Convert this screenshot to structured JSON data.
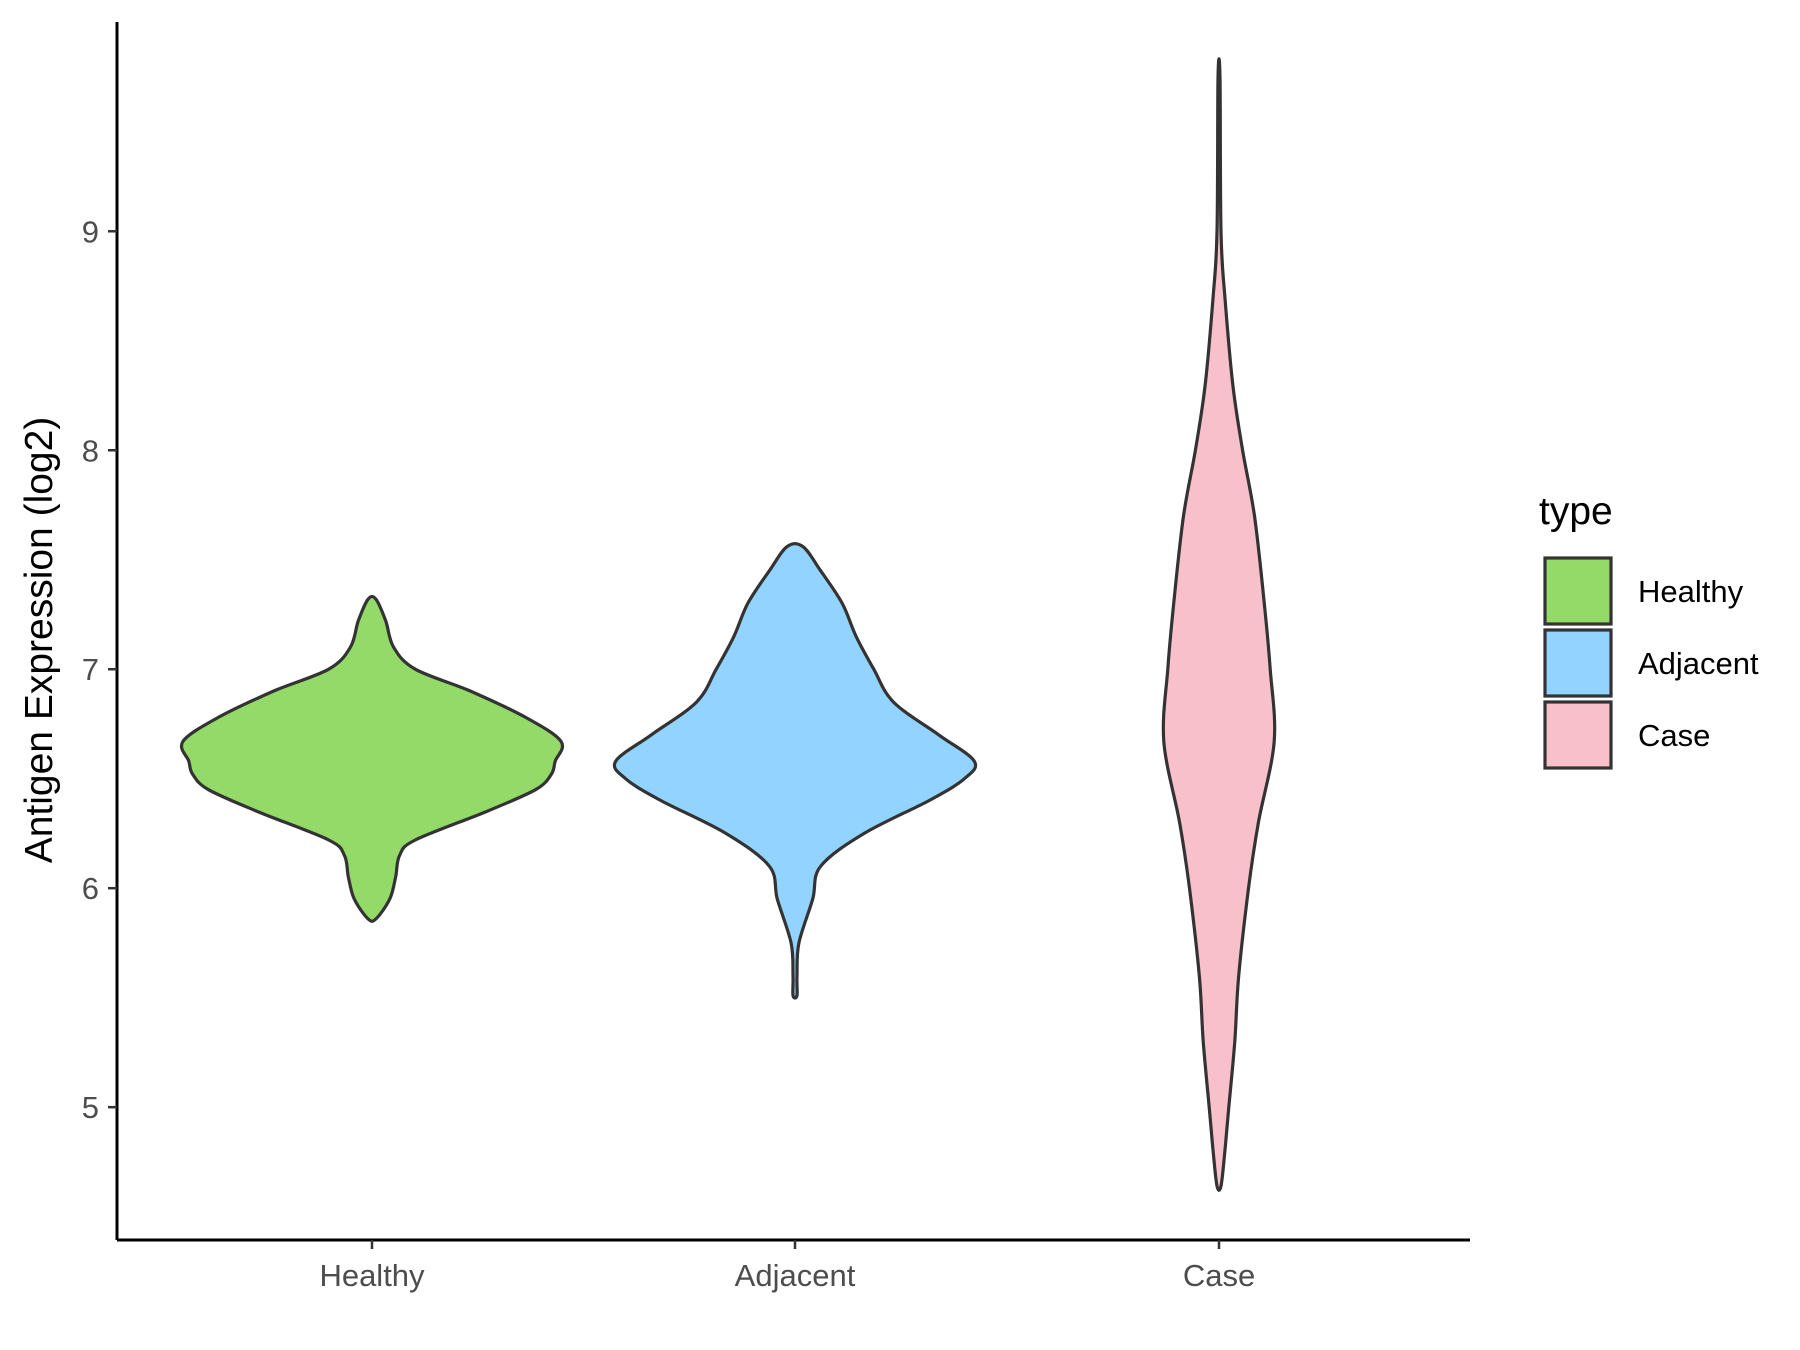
{
  "chart_data": {
    "type": "violin",
    "ylabel": "Antigen Expression (log2)",
    "xlabel": "",
    "categories": [
      "Healthy",
      "Adjacent",
      "Case"
    ],
    "ylim": [
      4.4,
      9.95
    ],
    "yticks": [
      5,
      6,
      7,
      8,
      9
    ],
    "grid": false,
    "legend": {
      "title": "type",
      "position": "right",
      "entries": [
        "Healthy",
        "Adjacent",
        "Case"
      ]
    },
    "colors": {
      "Healthy": "#93DA69",
      "Adjacent": "#93D3FF",
      "Case": "#F7C0CB",
      "outline": "#333333"
    },
    "series": [
      {
        "name": "Healthy",
        "range": [
          5.86,
          7.32
        ],
        "density_profile": [
          [
            5.86,
            0.02
          ],
          [
            5.95,
            0.09
          ],
          [
            6.05,
            0.12
          ],
          [
            6.15,
            0.14
          ],
          [
            6.22,
            0.22
          ],
          [
            6.35,
            0.58
          ],
          [
            6.45,
            0.83
          ],
          [
            6.52,
            0.91
          ],
          [
            6.58,
            0.93
          ],
          [
            6.67,
            0.96
          ],
          [
            6.78,
            0.78
          ],
          [
            6.9,
            0.5
          ],
          [
            7.0,
            0.22
          ],
          [
            7.1,
            0.11
          ],
          [
            7.22,
            0.07
          ],
          [
            7.32,
            0.02
          ]
        ]
      },
      {
        "name": "Adjacent",
        "range": [
          5.51,
          7.56
        ],
        "density_profile": [
          [
            5.51,
            0.01
          ],
          [
            5.6,
            0.01
          ],
          [
            5.75,
            0.02
          ],
          [
            5.95,
            0.09
          ],
          [
            6.1,
            0.13
          ],
          [
            6.25,
            0.35
          ],
          [
            6.4,
            0.68
          ],
          [
            6.5,
            0.86
          ],
          [
            6.58,
            0.91
          ],
          [
            6.7,
            0.73
          ],
          [
            6.85,
            0.5
          ],
          [
            7.0,
            0.4
          ],
          [
            7.15,
            0.31
          ],
          [
            7.3,
            0.24
          ],
          [
            7.45,
            0.13
          ],
          [
            7.56,
            0.04
          ]
        ]
      },
      {
        "name": "Case",
        "range": [
          4.64,
          9.7
        ],
        "density_profile": [
          [
            4.64,
            0.01
          ],
          [
            4.8,
            0.03
          ],
          [
            5.0,
            0.05
          ],
          [
            5.3,
            0.08
          ],
          [
            5.6,
            0.1
          ],
          [
            6.0,
            0.15
          ],
          [
            6.3,
            0.2
          ],
          [
            6.67,
            0.28
          ],
          [
            7.0,
            0.26
          ],
          [
            7.3,
            0.23
          ],
          [
            7.7,
            0.18
          ],
          [
            8.0,
            0.12
          ],
          [
            8.3,
            0.07
          ],
          [
            8.7,
            0.03
          ],
          [
            9.0,
            0.01
          ],
          [
            9.7,
            0.005
          ]
        ]
      }
    ]
  }
}
